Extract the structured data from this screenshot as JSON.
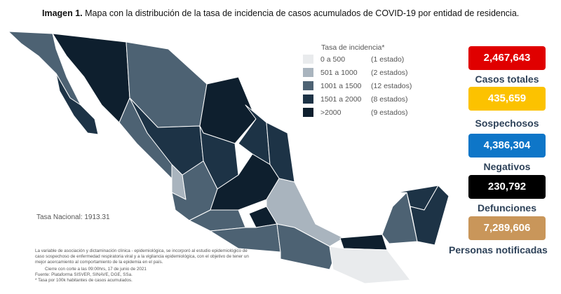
{
  "title": {
    "bold": "Imagen 1.",
    "text": " Mapa con la distribución de la tasa de incidencia de casos acumulados de COVID-19 por entidad de residencia."
  },
  "legend": {
    "title": "Tasa de incidencia*",
    "items": [
      {
        "range": "0 a  500",
        "count": "(1 estado)",
        "color": "#e9ebed"
      },
      {
        "range": "501 a  1000",
        "count": "(2 estados)",
        "color": "#a9b4be"
      },
      {
        "range": "1001 a  1500",
        "count": "(12 estados)",
        "color": "#4d6273"
      },
      {
        "range": "1501 a  2000",
        "count": "(8 estados)",
        "color": "#1d3346"
      },
      {
        "range": ">2000",
        "count": "(9 estados)",
        "color": "#0e1f2e"
      }
    ]
  },
  "national_rate": "Tasa Nacional: 1913.31",
  "notes": {
    "text": "La variable de asociación y dictaminación clínica - epidemiológica, se incorporó al estudio epidemiológico de caso sospechoso de enfermedad respiratoria viral y a la vigilancia epidemiológica, con el objetivo de tener un mejor acercamiento al comportamiento de la epidemia en el país.",
    "cutoff": "Cierre con corte a las 09:00hrs, 17 de junio de 2021",
    "source": "Fuente: Plataforma SISVER, SINAVE, DGE, SSa.",
    "footnote": "* Tasa por 100k habitantes de casos acumulados."
  },
  "stats": [
    {
      "value": "2,467,643",
      "label": "Casos totales",
      "color": "#e00000"
    },
    {
      "value": "435,659",
      "label": "Sospechosos",
      "color": "#fcc200"
    },
    {
      "value": "4,386,304",
      "label": "Negativos",
      "color": "#0e76c8"
    },
    {
      "value": "230,792",
      "label": "Defunciones",
      "color": "#000000"
    },
    {
      "value": "7,289,606",
      "label": "Personas notificadas",
      "color": "#c9965a"
    }
  ]
}
